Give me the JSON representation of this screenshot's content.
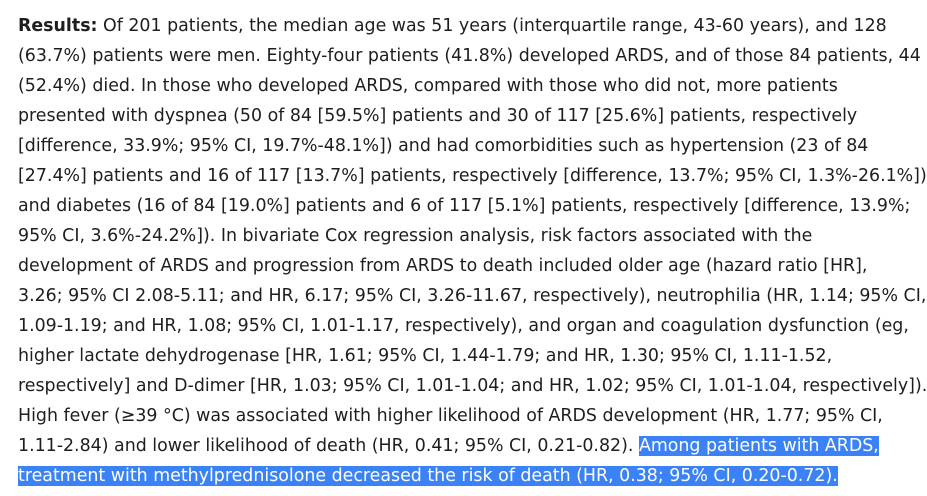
{
  "abstract": {
    "results_label": "Results:",
    "lines": [
      " Of 201 patients, the median age was 51 years (interquartile range, 43-60 years), and 128",
      "(63.7%) patients were men. Eighty-four patients (41.8%) developed ARDS, and of those 84 patients, 44",
      "(52.4%) died. In those who developed ARDS, compared with those who did not, more patients",
      "presented with dyspnea (50 of 84 [59.5%] patients and 30 of 117 [25.6%] patients, respectively",
      "[difference, 33.9%; 95% CI, 19.7%-48.1%]) and had comorbidities such as hypertension (23 of 84",
      "[27.4%] patients and 16 of 117 [13.7%] patients, respectively [difference, 13.7%; 95% CI, 1.3%-26.1%])",
      "and diabetes (16 of 84 [19.0%] patients and 6 of 117 [5.1%] patients, respectively [difference, 13.9%;",
      "95% CI, 3.6%-24.2%]). In bivariate Cox regression analysis, risk factors associated with the",
      "development of ARDS and progression from ARDS to death included older age (hazard ratio [HR],",
      "3.26; 95% CI 2.08-5.11; and HR, 6.17; 95% CI, 3.26-11.67, respectively), neutrophilia (HR, 1.14; 95% CI,",
      "1.09-1.19; and HR, 1.08; 95% CI, 1.01-1.17, respectively), and organ and coagulation dysfunction (eg,",
      "higher lactate dehydrogenase [HR, 1.61; 95% CI, 1.44-1.79; and HR, 1.30; 95% CI, 1.11-1.52,",
      "respectively] and D-dimer [HR, 1.03; 95% CI, 1.01-1.04; and HR, 1.02; 95% CI, 1.01-1.04, respectively]).",
      "High fever (≥39 °C) was associated with higher likelihood of ARDS development (HR, 1.77; 95% CI,"
    ],
    "line14_plain": "1.11-2.84) and lower likelihood of death (HR, 0.41; 95% CI, 0.21-0.82). ",
    "line14_selected": "Among patients with ARDS,",
    "line15_selected": "treatment with methylprednisolone decreased the risk of death (HR, 0.38; 95% CI, 0.20-0.72)."
  },
  "colors": {
    "text": "#1e1e1e",
    "selection_background": "#3b82f6",
    "selection_text": "#ffffff"
  }
}
